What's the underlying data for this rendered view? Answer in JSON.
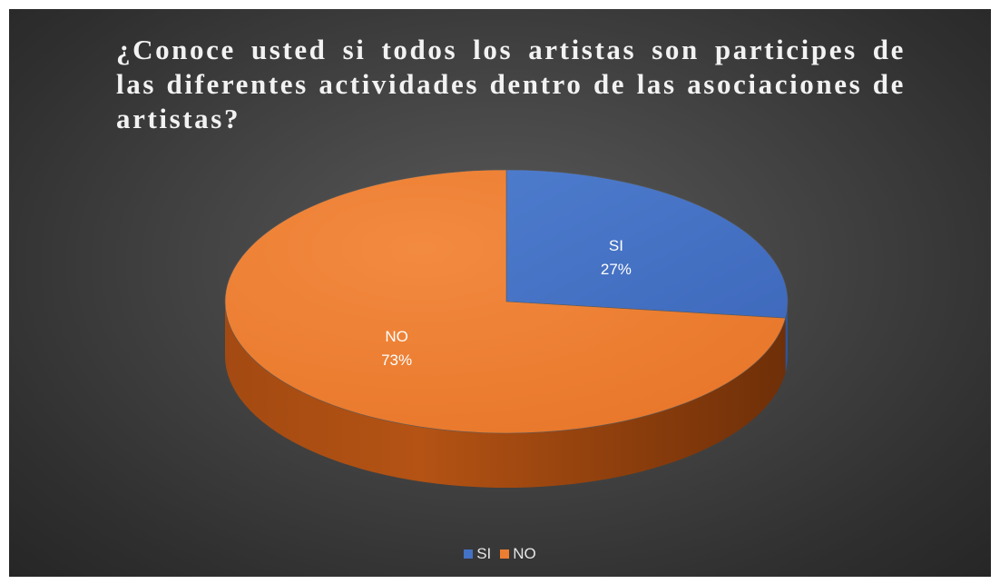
{
  "chart_data": {
    "type": "pie",
    "title": "¿Conoce usted si todos los artistas son participes de las diferentes actividades dentro de las asociaciones de artistas?",
    "three_d": true,
    "slices": [
      {
        "label": "SI",
        "value": 27,
        "display": "27%",
        "color": "#4472c4"
      },
      {
        "label": "NO",
        "value": 73,
        "display": "73%",
        "color": "#ed7d31"
      }
    ],
    "legend_position": "bottom"
  }
}
